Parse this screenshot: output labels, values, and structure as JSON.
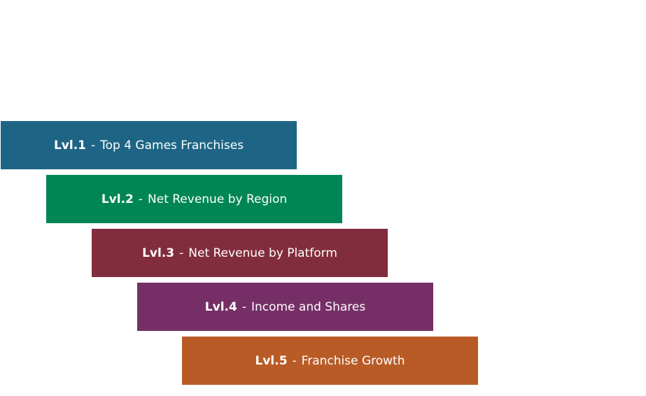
{
  "levels": [
    {
      "tag": "Lvl.1",
      "separator": "-",
      "title": "Top 4 Games Franchises",
      "color": "#1e6585"
    },
    {
      "tag": "Lvl.2",
      "separator": "-",
      "title": "Net Revenue by Region",
      "color": "#008656"
    },
    {
      "tag": "Lvl.3",
      "separator": "-",
      "title": "Net Revenue by Platform",
      "color": "#822d3d"
    },
    {
      "tag": "Lvl.4",
      "separator": "-",
      "title": "Income and Shares",
      "color": "#752f66"
    },
    {
      "tag": "Lvl.5",
      "separator": "-",
      "title": "Franchise Growth",
      "color": "#b95b27"
    }
  ]
}
